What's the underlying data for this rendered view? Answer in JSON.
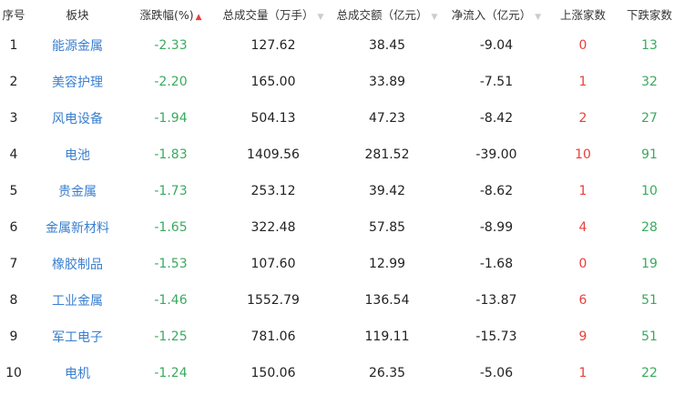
{
  "columns": [
    "序号",
    "板块",
    "涨跌幅(%)",
    "总成交量（万手）",
    "总成交额（亿元）",
    "净流入（亿元）",
    "上涨家数",
    "下跌家数"
  ],
  "colors": {
    "up": "#e5413b",
    "down": "#3aaa5e",
    "link": "#3a7fcf"
  },
  "sort": {
    "column": "涨跌幅(%)",
    "direction": "ascending"
  },
  "rows": [
    {
      "idx": "1",
      "name": "能源金属",
      "chg": "-2.33",
      "vol": "127.62",
      "amt": "38.45",
      "flow": "-9.04",
      "up": "0",
      "down": "13"
    },
    {
      "idx": "2",
      "name": "美容护理",
      "chg": "-2.20",
      "vol": "165.00",
      "amt": "33.89",
      "flow": "-7.51",
      "up": "1",
      "down": "32"
    },
    {
      "idx": "3",
      "name": "风电设备",
      "chg": "-1.94",
      "vol": "504.13",
      "amt": "47.23",
      "flow": "-8.42",
      "up": "2",
      "down": "27"
    },
    {
      "idx": "4",
      "name": "电池",
      "chg": "-1.83",
      "vol": "1409.56",
      "amt": "281.52",
      "flow": "-39.00",
      "up": "10",
      "down": "91"
    },
    {
      "idx": "5",
      "name": "贵金属",
      "chg": "-1.73",
      "vol": "253.12",
      "amt": "39.42",
      "flow": "-8.62",
      "up": "1",
      "down": "10"
    },
    {
      "idx": "6",
      "name": "金属新材料",
      "chg": "-1.65",
      "vol": "322.48",
      "amt": "57.85",
      "flow": "-8.99",
      "up": "4",
      "down": "28"
    },
    {
      "idx": "7",
      "name": "橡胶制品",
      "chg": "-1.53",
      "vol": "107.60",
      "amt": "12.99",
      "flow": "-1.68",
      "up": "0",
      "down": "19"
    },
    {
      "idx": "8",
      "name": "工业金属",
      "chg": "-1.46",
      "vol": "1552.79",
      "amt": "136.54",
      "flow": "-13.87",
      "up": "6",
      "down": "51"
    },
    {
      "idx": "9",
      "name": "军工电子",
      "chg": "-1.25",
      "vol": "781.06",
      "amt": "119.11",
      "flow": "-15.73",
      "up": "9",
      "down": "51"
    },
    {
      "idx": "10",
      "name": "电机",
      "chg": "-1.24",
      "vol": "150.06",
      "amt": "26.35",
      "flow": "-5.06",
      "up": "1",
      "down": "22"
    }
  ]
}
